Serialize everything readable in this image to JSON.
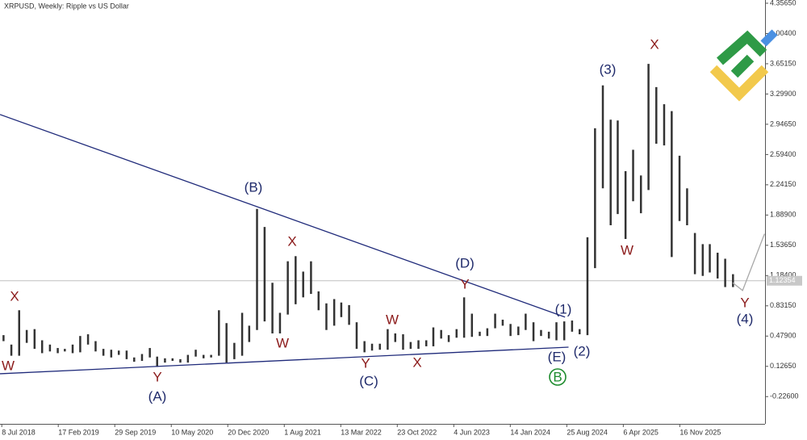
{
  "chart_data": {
    "type": "ohlc",
    "title": "XRPUSD, Weekly:  Ripple vs US Dollar",
    "xlim": [
      "2018-07-01",
      "2026-10-20"
    ],
    "ylim": [
      -0.5435,
      4.394
    ],
    "xticks": [
      {
        "value": "2018-07-08",
        "label": "8 Jul 2018"
      },
      {
        "value": "2019-02-17",
        "label": "17 Feb 2019"
      },
      {
        "value": "2019-09-29",
        "label": "29 Sep 2019"
      },
      {
        "value": "2020-05-10",
        "label": "10 May 2020"
      },
      {
        "value": "2020-12-20",
        "label": "20 Dec 2020"
      },
      {
        "value": "2021-08-01",
        "label": "1 Aug 2021"
      },
      {
        "value": "2022-03-13",
        "label": "13 Mar 2022"
      },
      {
        "value": "2022-10-23",
        "label": "23 Oct 2022"
      },
      {
        "value": "2023-06-04",
        "label": "4 Jun 2023"
      },
      {
        "value": "2024-01-14",
        "label": "14 Jan 2024"
      },
      {
        "value": "2024-08-25",
        "label": "25 Aug 2024"
      },
      {
        "value": "2025-04-06",
        "label": "6 Apr 2025"
      },
      {
        "value": "2025-11-16",
        "label": "16 Nov 2025"
      }
    ],
    "yticks": [
      {
        "value": 4.3565,
        "label": "4.35650"
      },
      {
        "value": 4.004,
        "label": "4.00400"
      },
      {
        "value": 3.6515,
        "label": "3.65150"
      },
      {
        "value": 3.299,
        "label": "3.29900"
      },
      {
        "value": 2.9465,
        "label": "2.94650"
      },
      {
        "value": 2.594,
        "label": "2.59400"
      },
      {
        "value": 2.2415,
        "label": "2.24150"
      },
      {
        "value": 1.889,
        "label": "1.88900"
      },
      {
        "value": 1.5365,
        "label": "1.53650"
      },
      {
        "value": 1.184,
        "label": "1.18400"
      },
      {
        "value": 0.8315,
        "label": "0.83150"
      },
      {
        "value": 0.479,
        "label": "0.47900"
      },
      {
        "value": 0.1265,
        "label": "0.12650"
      },
      {
        "value": -0.226,
        "label": "-0.22600"
      }
    ],
    "last_price": {
      "value": 1.12354,
      "label": "1.12354"
    },
    "series": [
      {
        "color": "#333333",
        "x": [
          "2018-07-15",
          "2018-08-15",
          "2018-09-15",
          "2018-10-15",
          "2018-11-15",
          "2018-12-15",
          "2019-01-15",
          "2019-02-15",
          "2019-03-15",
          "2019-04-15",
          "2019-05-15",
          "2019-06-15",
          "2019-07-15",
          "2019-08-15",
          "2019-09-15",
          "2019-10-15",
          "2019-11-15",
          "2019-12-15",
          "2020-01-15",
          "2020-02-15",
          "2020-03-15",
          "2020-04-15",
          "2020-05-15",
          "2020-06-15",
          "2020-07-15",
          "2020-08-15",
          "2020-09-15",
          "2020-10-15",
          "2020-11-15",
          "2020-12-15",
          "2021-01-15",
          "2021-02-15",
          "2021-03-15",
          "2021-04-15",
          "2021-05-15",
          "2021-06-15",
          "2021-07-15",
          "2021-08-15",
          "2021-09-15",
          "2021-10-15",
          "2021-11-15",
          "2021-12-15",
          "2022-01-15",
          "2022-02-15",
          "2022-03-15",
          "2022-04-15",
          "2022-05-15",
          "2022-06-15",
          "2022-07-15",
          "2022-08-15",
          "2022-09-15",
          "2022-10-15",
          "2022-11-15",
          "2022-12-15",
          "2023-01-15",
          "2023-02-15",
          "2023-03-15",
          "2023-04-15",
          "2023-05-15",
          "2023-06-15",
          "2023-07-15",
          "2023-08-15",
          "2023-09-15",
          "2023-10-15",
          "2023-11-15",
          "2023-12-15",
          "2024-01-15",
          "2024-02-15",
          "2024-03-15",
          "2024-04-15",
          "2024-05-15",
          "2024-06-15",
          "2024-07-15",
          "2024-08-15",
          "2024-09-15",
          "2024-10-15",
          "2024-11-15",
          "2024-12-15",
          "2025-01-15",
          "2025-02-15",
          "2025-03-15",
          "2025-04-15",
          "2025-05-15",
          "2025-06-15",
          "2025-07-15",
          "2025-08-15",
          "2025-09-15",
          "2025-10-15",
          "2025-11-15",
          "2025-12-15",
          "2026-01-15",
          "2026-02-15",
          "2026-03-15",
          "2026-04-15",
          "2026-05-15",
          "2026-06-15"
        ],
        "high": [
          0.49,
          0.38,
          0.78,
          0.55,
          0.56,
          0.43,
          0.38,
          0.34,
          0.33,
          0.38,
          0.48,
          0.5,
          0.42,
          0.33,
          0.32,
          0.31,
          0.31,
          0.23,
          0.27,
          0.34,
          0.24,
          0.22,
          0.22,
          0.21,
          0.26,
          0.32,
          0.26,
          0.26,
          0.78,
          0.63,
          0.4,
          0.75,
          0.6,
          1.96,
          1.75,
          1.1,
          0.75,
          1.35,
          1.41,
          1.23,
          1.35,
          1.0,
          0.86,
          0.91,
          0.87,
          0.84,
          0.64,
          0.42,
          0.39,
          0.39,
          0.56,
          0.51,
          0.5,
          0.41,
          0.43,
          0.43,
          0.58,
          0.55,
          0.49,
          0.56,
          0.93,
          0.74,
          0.53,
          0.57,
          0.74,
          0.67,
          0.62,
          0.59,
          0.74,
          0.64,
          0.55,
          0.53,
          0.64,
          0.65,
          0.66,
          0.56,
          1.63,
          2.9,
          3.4,
          3.0,
          2.99,
          2.4,
          2.65,
          2.35,
          3.65,
          3.38,
          3.18,
          3.1,
          2.58,
          2.2,
          1.68,
          1.55,
          1.55,
          1.45,
          1.38,
          1.2
        ],
        "low": [
          0.42,
          0.25,
          0.25,
          0.4,
          0.33,
          0.28,
          0.3,
          0.28,
          0.3,
          0.28,
          0.29,
          0.38,
          0.3,
          0.25,
          0.23,
          0.26,
          0.21,
          0.18,
          0.19,
          0.23,
          0.12,
          0.17,
          0.19,
          0.17,
          0.17,
          0.24,
          0.22,
          0.23,
          0.25,
          0.17,
          0.21,
          0.25,
          0.41,
          0.55,
          0.65,
          0.51,
          0.51,
          0.73,
          0.85,
          0.93,
          0.97,
          0.78,
          0.55,
          0.6,
          0.7,
          0.61,
          0.33,
          0.29,
          0.31,
          0.32,
          0.32,
          0.41,
          0.32,
          0.33,
          0.33,
          0.36,
          0.36,
          0.45,
          0.41,
          0.46,
          0.46,
          0.47,
          0.48,
          0.48,
          0.57,
          0.6,
          0.48,
          0.49,
          0.55,
          0.42,
          0.48,
          0.45,
          0.43,
          0.43,
          0.53,
          0.5,
          0.49,
          1.27,
          2.2,
          1.77,
          1.9,
          1.61,
          2.05,
          1.91,
          2.18,
          2.72,
          2.7,
          1.4,
          1.82,
          1.77,
          1.2,
          1.18,
          1.22,
          1.15,
          1.05,
          1.05
        ]
      }
    ],
    "trendlines": [
      {
        "color": "#1f2a7a",
        "x": [
          "2018-07-01",
          "2024-08-18"
        ],
        "y": [
          3.06,
          0.7
        ]
      },
      {
        "color": "#1f2a7a",
        "x": [
          "2018-07-01",
          "2024-09-01"
        ],
        "y": [
          0.04,
          0.35
        ]
      },
      {
        "color": "#a8a8a8",
        "x": [
          "2026-06-14",
          "2026-07-23",
          "2026-10-18"
        ],
        "y": [
          1.1,
          1.01,
          1.67
        ]
      }
    ],
    "annotations": [
      {
        "text": "X",
        "color": "#8b1a1a"
      },
      {
        "text": "W",
        "color": "#8b1a1a"
      },
      {
        "text": "Y",
        "color": "#8b1a1a"
      },
      {
        "text": "(A)",
        "color": "#1f2a6b"
      },
      {
        "text": "(B)",
        "color": "#1f2a6b"
      },
      {
        "text": "X",
        "color": "#8b1a1a"
      },
      {
        "text": "W",
        "color": "#8b1a1a"
      },
      {
        "text": "Y",
        "color": "#8b1a1a"
      },
      {
        "text": "(C)",
        "color": "#1f2a6b"
      },
      {
        "text": "W",
        "color": "#8b1a1a"
      },
      {
        "text": "X",
        "color": "#8b1a1a"
      },
      {
        "text": "(D)",
        "color": "#1f2a6b"
      },
      {
        "text": "Y",
        "color": "#8b1a1a"
      },
      {
        "text": "(1)",
        "color": "#1f2a6b"
      },
      {
        "text": "(2)",
        "color": "#1f2a6b"
      },
      {
        "text": "(E)",
        "color": "#1f2a6b"
      },
      {
        "text": "B",
        "color": "#1e8c2e",
        "circled": true
      },
      {
        "text": "(3)",
        "color": "#1f2a6b"
      },
      {
        "text": "W",
        "color": "#8b1a1a"
      },
      {
        "text": "X",
        "color": "#8b1a1a"
      },
      {
        "text": "Y",
        "color": "#8b1a1a"
      },
      {
        "text": "(4)",
        "color": "#1f2a6b"
      }
    ]
  }
}
